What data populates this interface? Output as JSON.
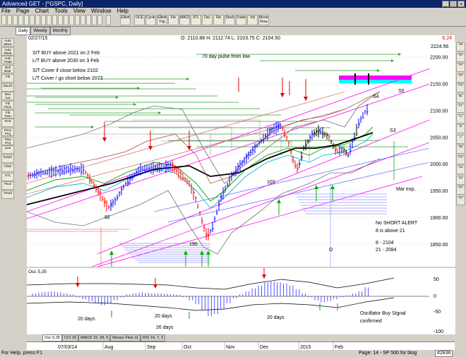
{
  "window": {
    "title": "Advanced GET - [^GSPC, Daily]"
  },
  "menu": [
    "File",
    "Page",
    "Chart",
    "Tools",
    "View",
    "Window",
    "Help"
  ],
  "toolbar_icons": [
    "Elliott",
    "OCE",
    "Cycles",
    "Elliott Trig",
    "Fib",
    "MACD",
    "XTL",
    "Osc",
    "Fib",
    "Stock",
    "Trade",
    "Vol",
    "Money Flow"
  ],
  "timeframe_tabs": {
    "daily": "Daily",
    "weekly": "Weekly",
    "monthly": "Monthly"
  },
  "info": {
    "date": "02/27/15",
    "ohlc": "O: 2110.88  H: 2112.74  L: 2103.75  C: 2104.50",
    "change": "6.24"
  },
  "annotations": {
    "buy1": "S/T BUY above 2021 on 2 Feb",
    "buy2": "L/T BUY above 2030 on 3 Feb",
    "cover1": "S/T Cover if close below 2102",
    "cover2": "L/T Cover / go short below 2073",
    "pulse": "70 day pulse from low",
    "s4": "S4",
    "s5": "S5",
    "s3": "S3",
    "mar_exp": "Mar exp.",
    "l82": "82",
    "l103": "103",
    "l190": "190",
    "lO": "O",
    "noshort1": "No SHORT ALERT",
    "noshort2": "8 is above 21",
    "ma8": "8   - 2104",
    "ma21": "21 - 2084",
    "d20a": "20 days",
    "d20b": "20 days",
    "d26": "26 days",
    "d20c": "20 days",
    "oscsig1": "Oscillator Buy Signal",
    "oscsig2": "confirmed"
  },
  "price_axis": {
    "top_value": "2224.56",
    "ticks": [
      "2200.00",
      "2150.00",
      "2100.00",
      "2050.00",
      "2000.00",
      "1950.00",
      "1900.00",
      "1850.00"
    ]
  },
  "osc_axis": {
    "ticks": [
      "50",
      "0",
      "-50",
      "-100"
    ]
  },
  "osc_label": "Osc 5,35",
  "indicator_tabs": [
    "Osc 5,35",
    "CCI 20",
    "MACD 19, 39, 9",
    "Money Flow 11",
    "RSI 14, 7, 3"
  ],
  "date_axis": {
    "start": "07/03/14",
    "months": [
      "Aug",
      "Sep",
      "Oct",
      "Nov",
      "Dec",
      "2015",
      "Feb"
    ]
  },
  "status": {
    "help": "For Help, press F1",
    "page": "Page: 14 - SP 500 for blog",
    "code": "#2836"
  },
  "left_tools": [
    "Auto Wave",
    "Auto Elliott",
    "Auto Trade",
    "Bull Bear",
    "Fib",
    "Dunch",
    "Mov Ave",
    "Fib Price",
    "Fib Time",
    "First",
    "Price Proj",
    "Time Proj",
    "Line",
    "Erase",
    "Chan",
    "XTL",
    "Pivot",
    "Trend"
  ],
  "right_tools": [
    "PB",
    "FR",
    "FR",
    "FR",
    "PTI",
    "ML",
    "PL",
    "TL",
    "IE",
    "X",
    "SB",
    "PTI",
    "GA",
    "DA",
    "FE",
    "FF"
  ],
  "colors": {
    "title_bar": "#0a246a",
    "up_bar": "#0000ff",
    "down_bar": "#ff0000",
    "magenta": "#ff00ff",
    "cyan": "#00ffff"
  }
}
